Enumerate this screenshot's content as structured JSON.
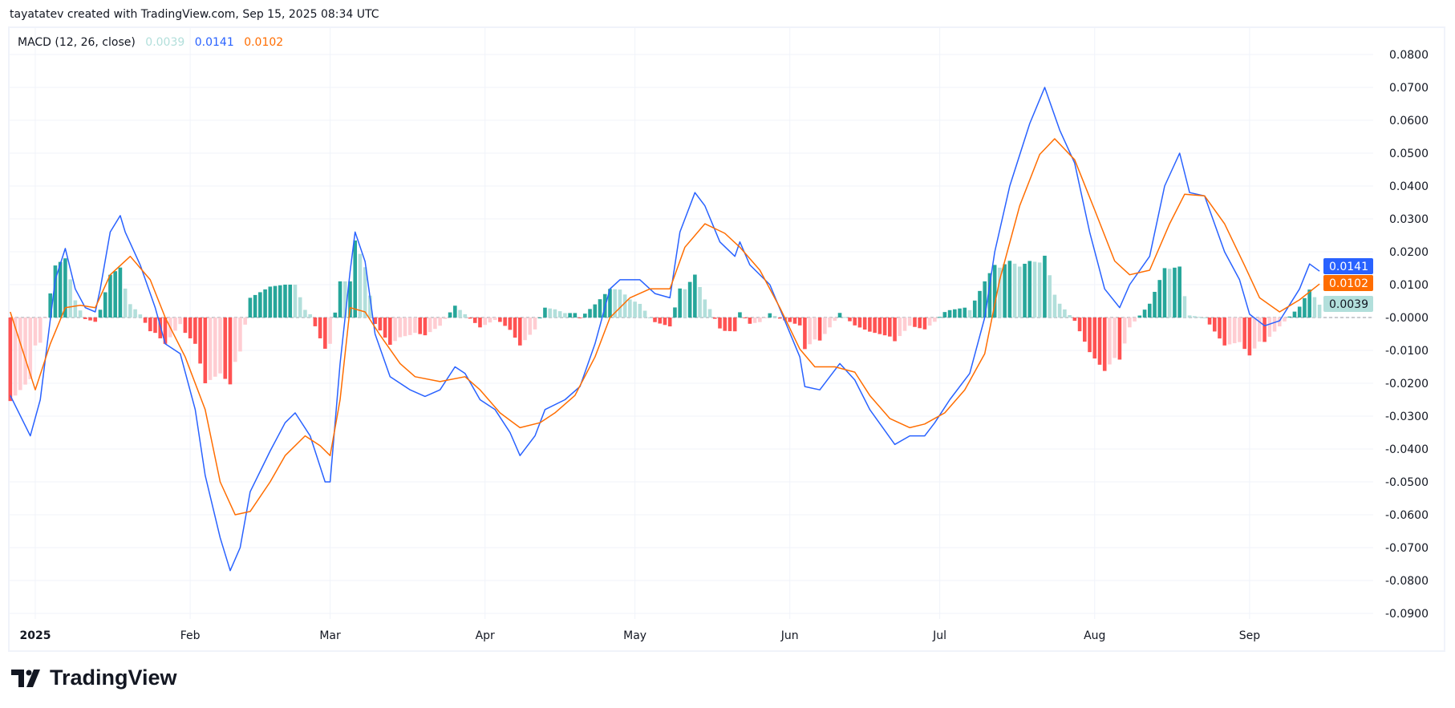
{
  "header": {
    "credit": "tayatatev created with TradingView.com, Sep 15, 2025 08:34 UTC"
  },
  "legend": {
    "title": "MACD (12, 26, close)",
    "histogram_value": "0.0039",
    "macd_value": "0.0141",
    "signal_value": "0.0102"
  },
  "logo": {
    "text": "TradingView"
  },
  "colors": {
    "macd": "#2962ff",
    "signal": "#ff6d00",
    "hist_pos_grow": "#26a69a",
    "hist_pos_fall": "#b2dfdb",
    "hist_neg_grow": "#ff5252",
    "hist_neg_fall": "#ffcdd2",
    "grid": "#f0f3fa",
    "text": "#131722"
  },
  "chart_data": {
    "type": "line",
    "title": "MACD (12, 26, close)",
    "ylim": [
      -0.09,
      0.085
    ],
    "grid": true,
    "y_ticks": [
      "0.0800",
      "0.0700",
      "0.0600",
      "0.0500",
      "0.0400",
      "0.0300",
      "0.0200",
      "0.0100",
      "-0.0000",
      "-0.0100",
      "-0.0200",
      "-0.0300",
      "-0.0400",
      "-0.0500",
      "-0.0600",
      "-0.0700",
      "-0.0800",
      "-0.0900"
    ],
    "y_tick_values": [
      0.08,
      0.07,
      0.06,
      0.05,
      0.04,
      0.03,
      0.02,
      0.01,
      0,
      -0.01,
      -0.02,
      -0.03,
      -0.04,
      -0.05,
      -0.06,
      -0.07,
      -0.08,
      -0.09
    ],
    "x_ticks": [
      {
        "label": "2025",
        "date": "2025-01-01",
        "bold": true
      },
      {
        "label": "Feb",
        "date": "2025-02-01"
      },
      {
        "label": "Mar",
        "date": "2025-03-01"
      },
      {
        "label": "Apr",
        "date": "2025-04-01"
      },
      {
        "label": "May",
        "date": "2025-05-01"
      },
      {
        "label": "Jun",
        "date": "2025-06-01"
      },
      {
        "label": "Jul",
        "date": "2025-07-01"
      },
      {
        "label": "Aug",
        "date": "2025-08-01"
      },
      {
        "label": "Sep",
        "date": "2025-09-01"
      }
    ],
    "last_values": {
      "macd": "0.0141",
      "signal": "0.0102",
      "histogram": "0.0039"
    },
    "series": [
      {
        "key": "macd",
        "points": [
          [
            "2024-12-27",
            -0.0237
          ],
          [
            "2024-12-31",
            -0.036
          ],
          [
            "2025-01-02",
            -0.025
          ],
          [
            "2025-01-05",
            0.0115
          ],
          [
            "2025-01-07",
            0.021
          ],
          [
            "2025-01-09",
            0.0087
          ],
          [
            "2025-01-11",
            0.003
          ],
          [
            "2025-01-13",
            0.0017
          ],
          [
            "2025-01-14",
            0.0087
          ],
          [
            "2025-01-16",
            0.026
          ],
          [
            "2025-01-18",
            0.031
          ],
          [
            "2025-01-19",
            0.026
          ],
          [
            "2025-01-22",
            0.016
          ],
          [
            "2025-01-25",
            0.003
          ],
          [
            "2025-01-27",
            -0.008
          ],
          [
            "2025-01-30",
            -0.011
          ],
          [
            "2025-02-02",
            -0.028
          ],
          [
            "2025-02-04",
            -0.048
          ],
          [
            "2025-02-07",
            -0.067
          ],
          [
            "2025-02-09",
            -0.077
          ],
          [
            "2025-02-11",
            -0.07
          ],
          [
            "2025-02-13",
            -0.053
          ],
          [
            "2025-02-17",
            -0.0406
          ],
          [
            "2025-02-20",
            -0.032
          ],
          [
            "2025-02-22",
            -0.029
          ],
          [
            "2025-02-25",
            -0.036
          ],
          [
            "2025-02-28",
            -0.05
          ],
          [
            "2025-03-01",
            -0.05
          ],
          [
            "2025-03-03",
            -0.014
          ],
          [
            "2025-03-05",
            0.014
          ],
          [
            "2025-03-06",
            0.026
          ],
          [
            "2025-03-08",
            0.017
          ],
          [
            "2025-03-10",
            -0.005
          ],
          [
            "2025-03-13",
            -0.018
          ],
          [
            "2025-03-17",
            -0.022
          ],
          [
            "2025-03-20",
            -0.024
          ],
          [
            "2025-03-23",
            -0.022
          ],
          [
            "2025-03-26",
            -0.015
          ],
          [
            "2025-03-28",
            -0.017
          ],
          [
            "2025-03-31",
            -0.025
          ],
          [
            "2025-04-03",
            -0.028
          ],
          [
            "2025-04-06",
            -0.035
          ],
          [
            "2025-04-08",
            -0.042
          ],
          [
            "2025-04-11",
            -0.036
          ],
          [
            "2025-04-13",
            -0.028
          ],
          [
            "2025-04-17",
            -0.025
          ],
          [
            "2025-04-20",
            -0.021
          ],
          [
            "2025-04-23",
            -0.008
          ],
          [
            "2025-04-26",
            0.0087
          ],
          [
            "2025-04-28",
            0.0115
          ],
          [
            "2025-05-02",
            0.0115
          ],
          [
            "2025-05-05",
            0.0073
          ],
          [
            "2025-05-08",
            0.006
          ],
          [
            "2025-05-10",
            0.026
          ],
          [
            "2025-05-13",
            0.038
          ],
          [
            "2025-05-15",
            0.034
          ],
          [
            "2025-05-18",
            0.023
          ],
          [
            "2025-05-21",
            0.0186
          ],
          [
            "2025-05-22",
            0.023
          ],
          [
            "2025-05-24",
            0.016
          ],
          [
            "2025-05-28",
            0.01
          ],
          [
            "2025-05-31",
            -0.001
          ],
          [
            "2025-06-03",
            -0.012
          ],
          [
            "2025-06-04",
            -0.021
          ],
          [
            "2025-06-07",
            -0.022
          ],
          [
            "2025-06-11",
            -0.014
          ],
          [
            "2025-06-14",
            -0.019
          ],
          [
            "2025-06-17",
            -0.028
          ],
          [
            "2025-06-22",
            -0.0386
          ],
          [
            "2025-06-25",
            -0.036
          ],
          [
            "2025-06-28",
            -0.036
          ],
          [
            "2025-06-30",
            -0.032
          ],
          [
            "2025-07-03",
            -0.025
          ],
          [
            "2025-07-07",
            -0.017
          ],
          [
            "2025-07-10",
            0.0
          ],
          [
            "2025-07-12",
            0.02
          ],
          [
            "2025-07-15",
            0.04
          ],
          [
            "2025-07-19",
            0.059
          ],
          [
            "2025-07-22",
            0.07
          ],
          [
            "2025-07-25",
            0.057
          ],
          [
            "2025-07-28",
            0.047
          ],
          [
            "2025-07-31",
            0.026
          ],
          [
            "2025-08-03",
            0.0087
          ],
          [
            "2025-08-06",
            0.003
          ],
          [
            "2025-08-08",
            0.01
          ],
          [
            "2025-08-12",
            0.0186
          ],
          [
            "2025-08-15",
            0.04
          ],
          [
            "2025-08-18",
            0.05
          ],
          [
            "2025-08-20",
            0.038
          ],
          [
            "2025-08-23",
            0.037
          ],
          [
            "2025-08-27",
            0.02
          ],
          [
            "2025-08-30",
            0.0115
          ],
          [
            "2025-09-01",
            0.001
          ],
          [
            "2025-09-04",
            -0.0025
          ],
          [
            "2025-09-07",
            -0.001
          ],
          [
            "2025-09-11",
            0.0087
          ],
          [
            "2025-09-13",
            0.0163
          ],
          [
            "2025-09-15",
            0.0141
          ]
        ]
      },
      {
        "key": "signal",
        "points": [
          [
            "2024-12-27",
            0.0017
          ],
          [
            "2025-01-01",
            -0.022
          ],
          [
            "2025-01-04",
            -0.008
          ],
          [
            "2025-01-07",
            0.003
          ],
          [
            "2025-01-10",
            0.0037
          ],
          [
            "2025-01-13",
            0.003
          ],
          [
            "2025-01-16",
            0.013
          ],
          [
            "2025-01-20",
            0.0186
          ],
          [
            "2025-01-24",
            0.0115
          ],
          [
            "2025-01-27",
            0.0
          ],
          [
            "2025-01-31",
            -0.012
          ],
          [
            "2025-02-04",
            -0.028
          ],
          [
            "2025-02-07",
            -0.05
          ],
          [
            "2025-02-10",
            -0.06
          ],
          [
            "2025-02-13",
            -0.059
          ],
          [
            "2025-02-17",
            -0.05
          ],
          [
            "2025-02-20",
            -0.042
          ],
          [
            "2025-02-24",
            -0.036
          ],
          [
            "2025-02-27",
            -0.039
          ],
          [
            "2025-03-01",
            -0.042
          ],
          [
            "2025-03-03",
            -0.025
          ],
          [
            "2025-03-05",
            0.003
          ],
          [
            "2025-03-08",
            0.0017
          ],
          [
            "2025-03-11",
            -0.0054
          ],
          [
            "2025-03-15",
            -0.014
          ],
          [
            "2025-03-18",
            -0.018
          ],
          [
            "2025-03-23",
            -0.0195
          ],
          [
            "2025-03-28",
            -0.018
          ],
          [
            "2025-03-31",
            -0.022
          ],
          [
            "2025-04-04",
            -0.029
          ],
          [
            "2025-04-08",
            -0.0335
          ],
          [
            "2025-04-12",
            -0.032
          ],
          [
            "2025-04-15",
            -0.029
          ],
          [
            "2025-04-19",
            -0.0237
          ],
          [
            "2025-04-23",
            -0.012
          ],
          [
            "2025-04-26",
            0.0
          ],
          [
            "2025-04-30",
            0.006
          ],
          [
            "2025-05-04",
            0.0087
          ],
          [
            "2025-05-08",
            0.0087
          ],
          [
            "2025-05-11",
            0.0214
          ],
          [
            "2025-05-15",
            0.0285
          ],
          [
            "2025-05-19",
            0.0256
          ],
          [
            "2025-05-22",
            0.0214
          ],
          [
            "2025-05-26",
            0.0144
          ],
          [
            "2025-05-30",
            0.003
          ],
          [
            "2025-06-03",
            -0.0096
          ],
          [
            "2025-06-06",
            -0.015
          ],
          [
            "2025-06-10",
            -0.015
          ],
          [
            "2025-06-14",
            -0.0166
          ],
          [
            "2025-06-17",
            -0.0237
          ],
          [
            "2025-06-21",
            -0.0307
          ],
          [
            "2025-06-25",
            -0.0335
          ],
          [
            "2025-06-28",
            -0.0324
          ],
          [
            "2025-07-02",
            -0.029
          ],
          [
            "2025-07-06",
            -0.022
          ],
          [
            "2025-07-10",
            -0.011
          ],
          [
            "2025-07-13",
            0.0115
          ],
          [
            "2025-07-17",
            0.034
          ],
          [
            "2025-07-21",
            0.0496
          ],
          [
            "2025-07-24",
            0.0544
          ],
          [
            "2025-07-28",
            0.048
          ],
          [
            "2025-08-01",
            0.0327
          ],
          [
            "2025-08-05",
            0.0172
          ],
          [
            "2025-08-08",
            0.013
          ],
          [
            "2025-08-12",
            0.0144
          ],
          [
            "2025-08-16",
            0.0285
          ],
          [
            "2025-08-19",
            0.0375
          ],
          [
            "2025-08-23",
            0.037
          ],
          [
            "2025-08-27",
            0.0285
          ],
          [
            "2025-08-31",
            0.0158
          ],
          [
            "2025-09-03",
            0.006
          ],
          [
            "2025-09-07",
            0.0017
          ],
          [
            "2025-09-11",
            0.0054
          ],
          [
            "2025-09-15",
            0.0102
          ]
        ]
      }
    ]
  }
}
